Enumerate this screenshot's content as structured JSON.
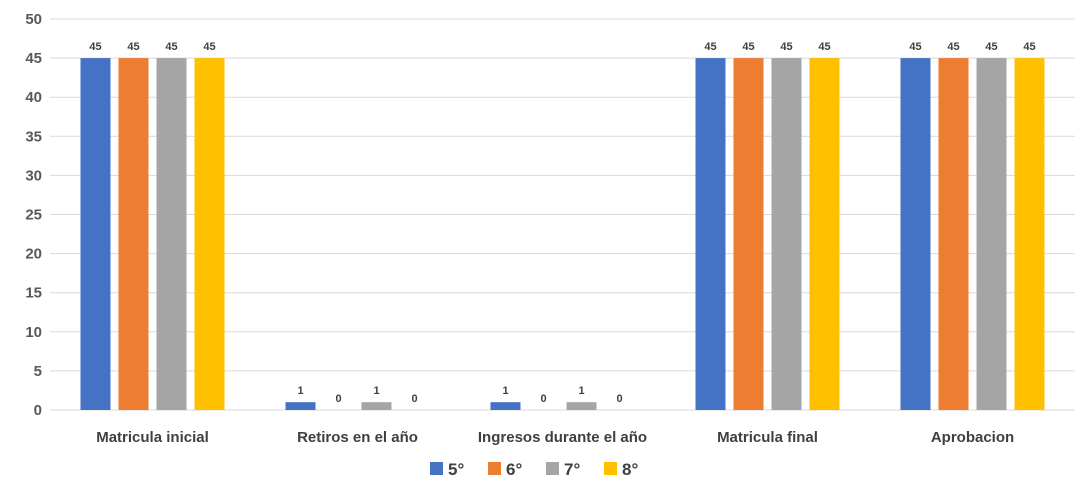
{
  "chart_data": {
    "type": "bar",
    "categories": [
      "Matricula inicial",
      "Retiros en el año",
      "Ingresos durante el año",
      "Matricula final",
      "Aprobacion"
    ],
    "series": [
      {
        "name": "5°",
        "color": "#4472C4",
        "values": [
          45,
          1,
          1,
          45,
          45
        ]
      },
      {
        "name": "6°",
        "color": "#ED7D31",
        "values": [
          45,
          0,
          0,
          45,
          45
        ]
      },
      {
        "name": "7°",
        "color": "#A5A5A5",
        "values": [
          45,
          1,
          1,
          45,
          45
        ]
      },
      {
        "name": "8°",
        "color": "#FFC000",
        "values": [
          45,
          0,
          0,
          45,
          45
        ]
      }
    ],
    "yticks": [
      0,
      5,
      10,
      15,
      20,
      25,
      30,
      35,
      40,
      45,
      50
    ],
    "ylim": [
      0,
      50
    ],
    "grid": true,
    "data_labels": true,
    "legend_position": "bottom",
    "title": "",
    "xlabel": "",
    "ylabel": ""
  }
}
